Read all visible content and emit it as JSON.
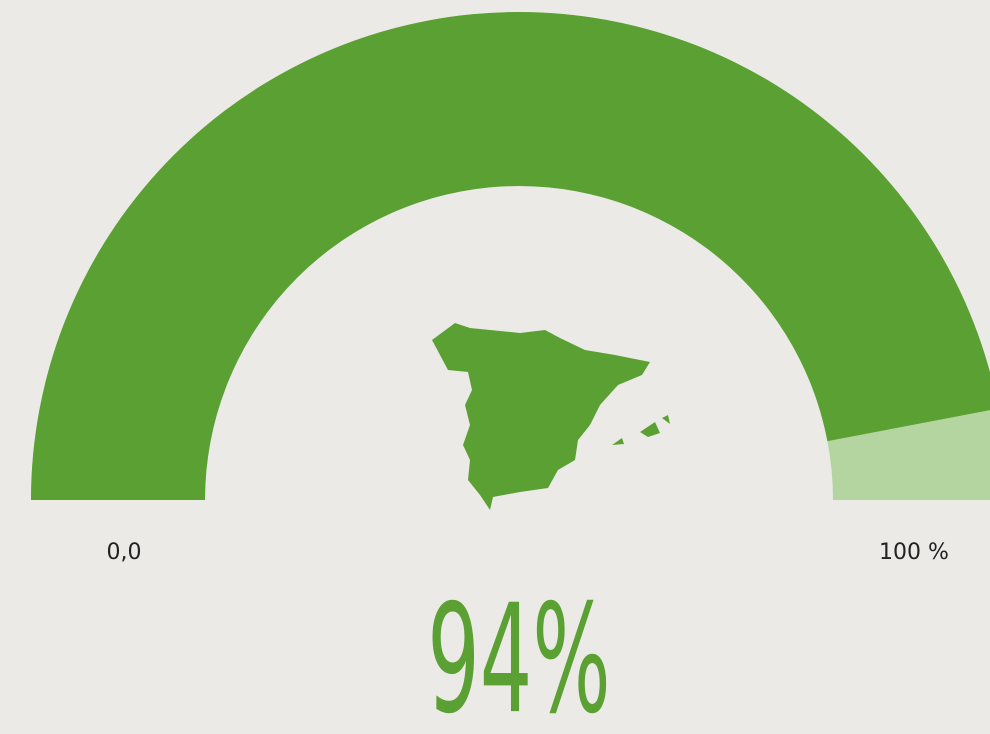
{
  "chart_data": {
    "type": "gauge",
    "values": [
      94
    ],
    "value_labels": [
      "94%"
    ],
    "ylim": [
      0,
      100
    ],
    "yticks": [
      {
        "value": 0,
        "label": "0,0"
      },
      {
        "value": 100,
        "label": "100 %"
      }
    ],
    "color": "#5aa032",
    "track_color": "#b4d5a0"
  }
}
